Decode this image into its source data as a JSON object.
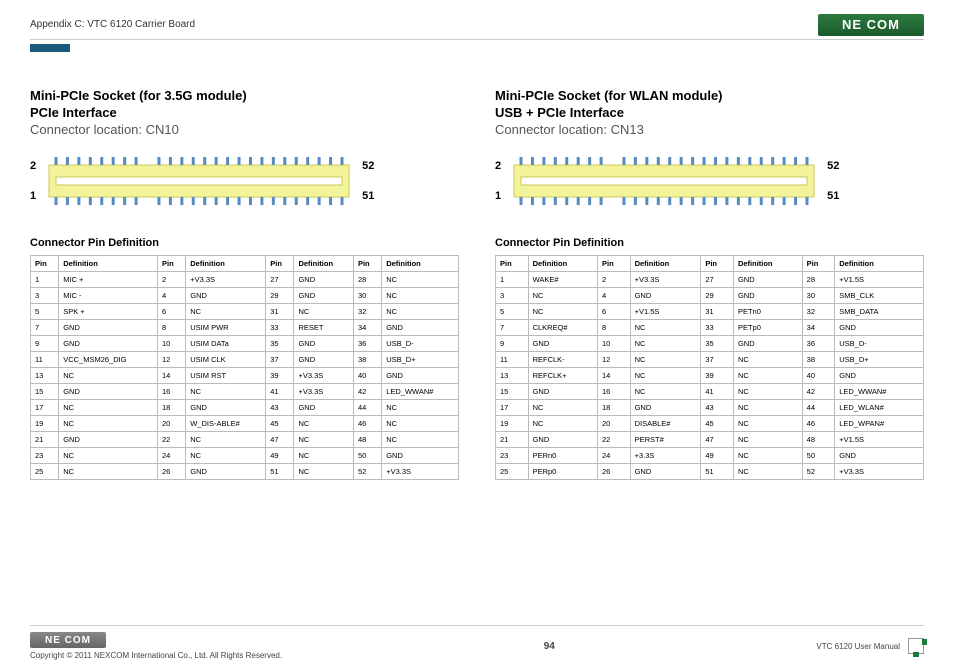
{
  "header": {
    "appendix_title": "Appendix C: VTC 6120 Carrier Board",
    "logo_text": "NE COM"
  },
  "columns": [
    {
      "title_line1": "Mini-PCIe Socket (for 3.5G module)",
      "title_line2": "PCIe Interface",
      "subtitle": "Connector location: CN10",
      "pin_labels": {
        "top_left": "2",
        "top_right": "52",
        "bottom_left": "1",
        "bottom_right": "51"
      },
      "diagram": {
        "body_fill": "#f3f39a",
        "body_stroke": "#c9c95a",
        "pin_fill": "#5a8abf",
        "notch_gap_start": 0.28,
        "notch_gap_end": 0.34
      },
      "table_title": "Connector Pin Definition",
      "headers": [
        "Pin",
        "Definition",
        "Pin",
        "Definition",
        "Pin",
        "Definition",
        "Pin",
        "Definition"
      ],
      "rows": [
        [
          "1",
          "MIC +",
          "2",
          "+V3.3S",
          "27",
          "GND",
          "28",
          "NC"
        ],
        [
          "3",
          "MIC -",
          "4",
          "GND",
          "29",
          "GND",
          "30",
          "NC"
        ],
        [
          "5",
          "SPK +",
          "6",
          "NC",
          "31",
          "NC",
          "32",
          "NC"
        ],
        [
          "7",
          "GND",
          "8",
          "USIM PWR",
          "33",
          "RESET",
          "34",
          "GND"
        ],
        [
          "9",
          "GND",
          "10",
          "USIM DATa",
          "35",
          "GND",
          "36",
          "USB_D-"
        ],
        [
          "11",
          "VCC_MSM26_DIG",
          "12",
          "USIM CLK",
          "37",
          "GND",
          "38",
          "USB_D+"
        ],
        [
          "13",
          "NC",
          "14",
          "USIM RST",
          "39",
          "+V3.3S",
          "40",
          "GND"
        ],
        [
          "15",
          "GND",
          "16",
          "NC",
          "41",
          "+V3.3S",
          "42",
          "LED_WWAN#"
        ],
        [
          "17",
          "NC",
          "18",
          "GND",
          "43",
          "GND",
          "44",
          "NC"
        ],
        [
          "19",
          "NC",
          "20",
          "W_DIS-ABLE#",
          "45",
          "NC",
          "46",
          "NC"
        ],
        [
          "21",
          "GND",
          "22",
          "NC",
          "47",
          "NC",
          "48",
          "NC"
        ],
        [
          "23",
          "NC",
          "24",
          "NC",
          "49",
          "NC",
          "50",
          "GND"
        ],
        [
          "25",
          "NC",
          "26",
          "GND",
          "51",
          "NC",
          "52",
          "+V3.3S"
        ]
      ]
    },
    {
      "title_line1": "Mini-PCIe Socket (for WLAN module)",
      "title_line2": "USB + PCIe Interface",
      "subtitle": "Connector location: CN13",
      "pin_labels": {
        "top_left": "2",
        "top_right": "52",
        "bottom_left": "1",
        "bottom_right": "51"
      },
      "diagram": {
        "body_fill": "#f3f39a",
        "body_stroke": "#c9c95a",
        "pin_fill": "#5a8abf",
        "notch_gap_start": 0.28,
        "notch_gap_end": 0.34
      },
      "table_title": "Connector Pin Definition",
      "headers": [
        "Pin",
        "Definition",
        "Pin",
        "Definition",
        "Pin",
        "Definition",
        "Pin",
        "Definition"
      ],
      "rows": [
        [
          "1",
          "WAKE#",
          "2",
          "+V3.3S",
          "27",
          "GND",
          "28",
          "+V1.5S"
        ],
        [
          "3",
          "NC",
          "4",
          "GND",
          "29",
          "GND",
          "30",
          "SMB_CLK"
        ],
        [
          "5",
          "NC",
          "6",
          "+V1.5S",
          "31",
          "PETn0",
          "32",
          "SMB_DATA"
        ],
        [
          "7",
          "CLKREQ#",
          "8",
          "NC",
          "33",
          "PETp0",
          "34",
          "GND"
        ],
        [
          "9",
          "GND",
          "10",
          "NC",
          "35",
          "GND",
          "36",
          "USB_D-"
        ],
        [
          "11",
          "REFCLK-",
          "12",
          "NC",
          "37",
          "NC",
          "38",
          "USB_D+"
        ],
        [
          "13",
          "REFCLK+",
          "14",
          "NC",
          "39",
          "NC",
          "40",
          "GND"
        ],
        [
          "15",
          "GND",
          "16",
          "NC",
          "41",
          "NC",
          "42",
          "LED_WWAN#"
        ],
        [
          "17",
          "NC",
          "18",
          "GND",
          "43",
          "NC",
          "44",
          "LED_WLAN#"
        ],
        [
          "19",
          "NC",
          "20",
          "DISABLE#",
          "45",
          "NC",
          "46",
          "LED_WPAN#"
        ],
        [
          "21",
          "GND",
          "22",
          "PERST#",
          "47",
          "NC",
          "48",
          "+V1.5S"
        ],
        [
          "23",
          "PERn0",
          "24",
          "+3.3S",
          "49",
          "NC",
          "50",
          "GND"
        ],
        [
          "25",
          "PERp0",
          "26",
          "GND",
          "51",
          "NC",
          "52",
          "+V3.3S"
        ]
      ]
    }
  ],
  "footer": {
    "logo_text": "NE COM",
    "copyright": "Copyright © 2011 NEXCOM International Co., Ltd. All Rights Reserved.",
    "page_number": "94",
    "manual": "VTC 6120 User Manual"
  }
}
